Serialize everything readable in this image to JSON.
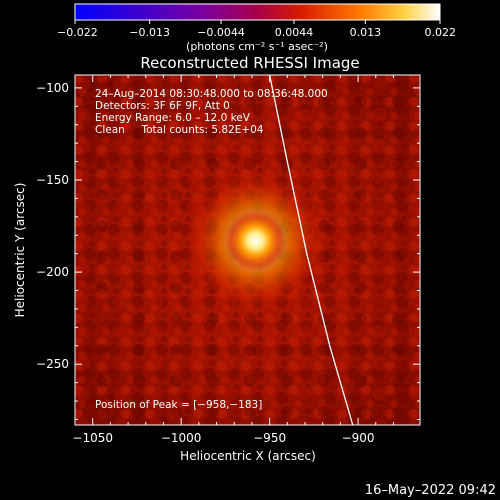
{
  "chart_data": {
    "type": "heatmap",
    "title": "Reconstructed RHESSI Image",
    "xlabel": "Heliocentric X (arcsec)",
    "ylabel": "Heliocentric Y (arcsec)",
    "xlim": [
      -1060,
      -865
    ],
    "ylim": [
      -283,
      -93
    ],
    "xticks": [
      -1050,
      -1000,
      -950,
      -900
    ],
    "yticks": [
      -100,
      -150,
      -200,
      -250
    ],
    "xtick_labels": [
      "−1050",
      "−1000",
      "−950",
      "−900"
    ],
    "ytick_labels": [
      "−100",
      "−150",
      "−200",
      "−250"
    ],
    "colorbar": {
      "range": [
        -0.022,
        0.022
      ],
      "ticks": [
        -0.022,
        -0.013,
        -0.0044,
        0.0044,
        0.013,
        0.022
      ],
      "tick_labels": [
        "−0.022",
        "−0.013",
        "−0.0044",
        "0.0044",
        "0.013",
        "0.022"
      ],
      "unit_label": "(photons cm⁻² s⁻¹ asec⁻²)",
      "colors": [
        "#0000ff",
        "#6a00a8",
        "#b0003a",
        "#e03000",
        "#ff8800",
        "#ffe040",
        "#ffffff"
      ]
    },
    "peak": [
      -958,
      -183
    ],
    "info": {
      "time": "24–Aug–2014 08:30:48.000 to 08:36:48.000",
      "detectors": "Detectors: 3F 6F 9F, Att 0",
      "energy": "Energy Range: 6.0 – 12.0 keV",
      "clean": "Clean     Total counts: 5.82E+04",
      "peak_text": "Position of Peak = [−958,−183]"
    },
    "limb": {
      "points": [
        [
          -950,
          -93
        ],
        [
          -940,
          -140
        ],
        [
          -929,
          -190
        ],
        [
          -916,
          -240
        ],
        [
          -903,
          -283
        ]
      ],
      "color": "#ffffff"
    }
  },
  "footer": {
    "timestamp": "16–May–2022 09:42"
  }
}
